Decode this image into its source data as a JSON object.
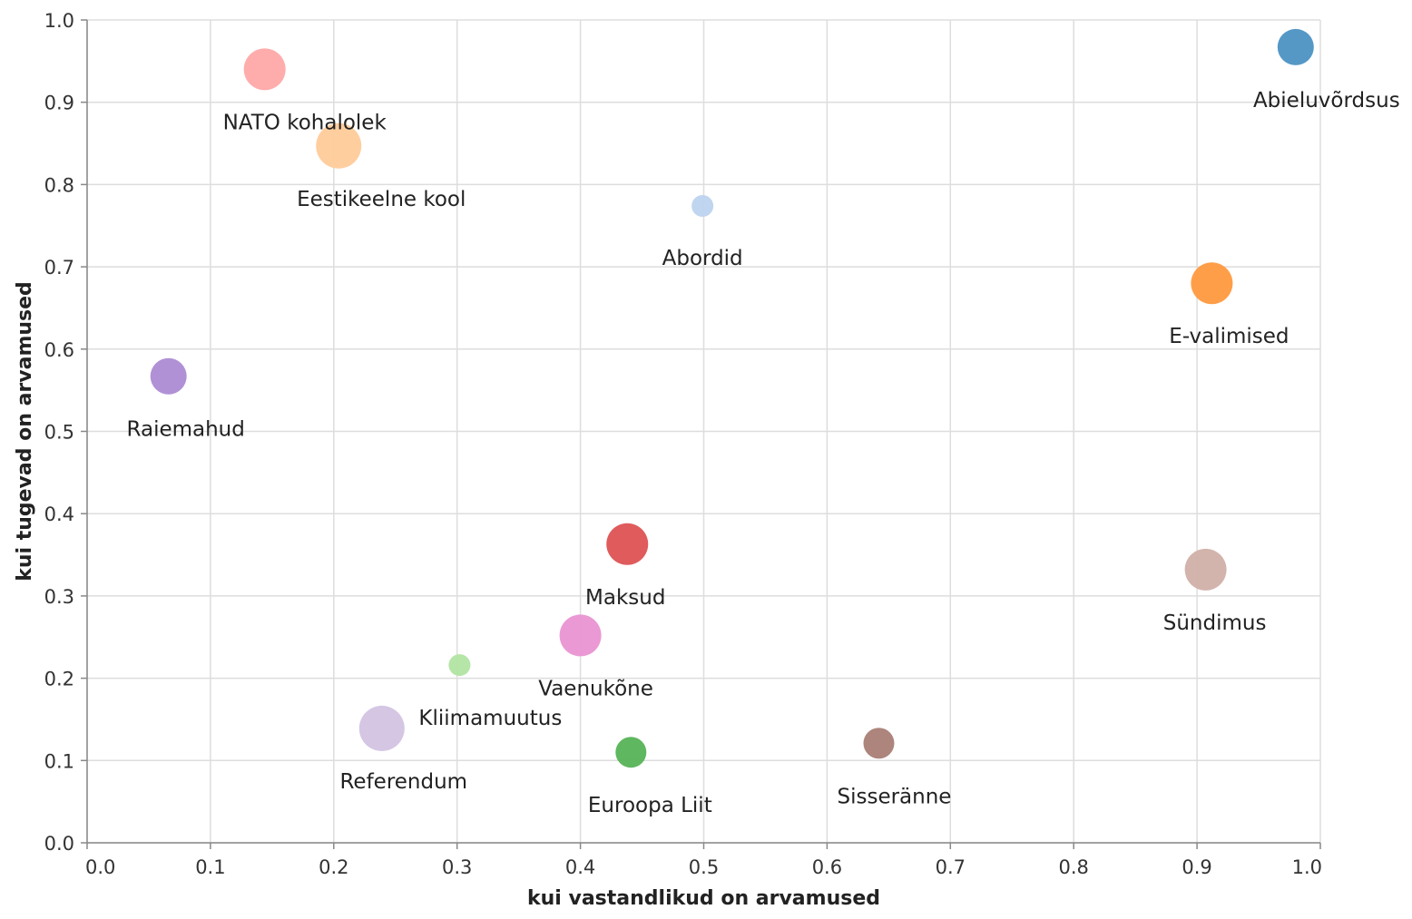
{
  "chart_data": {
    "type": "scatter",
    "xlabel": "kui vastandlikud on arvamused",
    "ylabel": "kui tugevad on arvamused",
    "xlim": [
      0,
      1
    ],
    "ylim": [
      0,
      1
    ],
    "x_ticks": [
      "0.0",
      "0.1",
      "0.2",
      "0.3",
      "0.4",
      "0.5",
      "0.6",
      "0.7",
      "0.8",
      "0.9",
      "1.0"
    ],
    "y_ticks": [
      "0.0",
      "0.1",
      "0.2",
      "0.3",
      "0.4",
      "0.5",
      "0.6",
      "0.7",
      "0.8",
      "0.9",
      "1.0"
    ],
    "grid": true,
    "encoding": "bubble size = third variable (unlabeled); color = category",
    "points": [
      {
        "label": "Abieluvõrdsus",
        "x": 0.98,
        "y": 0.967,
        "size": 3,
        "color": "#4c92c3"
      },
      {
        "label": "NATO kohalolek",
        "x": 0.144,
        "y": 0.94,
        "size": 4,
        "color": "#ffa8a8"
      },
      {
        "label": "Eestikeelne kool",
        "x": 0.204,
        "y": 0.847,
        "size": 5,
        "color": "#ffcb9a"
      },
      {
        "label": "Abordid",
        "x": 0.499,
        "y": 0.774,
        "size": 1,
        "color": "#bdd3ee"
      },
      {
        "label": "E-valimised",
        "x": 0.912,
        "y": 0.68,
        "size": 4,
        "color": "#ff993e"
      },
      {
        "label": "Raiemahud",
        "x": 0.066,
        "y": 0.567,
        "size": 3,
        "color": "#ad8bd3"
      },
      {
        "label": "Maksud",
        "x": 0.438,
        "y": 0.363,
        "size": 4,
        "color": "#de5253"
      },
      {
        "label": "Sündimus",
        "x": 0.907,
        "y": 0.332,
        "size": 4,
        "color": "#d0b0a9"
      },
      {
        "label": "Vaenukõne",
        "x": 0.4,
        "y": 0.252,
        "size": 4,
        "color": "#e994d2"
      },
      {
        "label": "Kliimamuutus",
        "x": 0.302,
        "y": 0.216,
        "size": 1,
        "color": "#b1e4a2"
      },
      {
        "label": "Referendum",
        "x": 0.239,
        "y": 0.139,
        "size": 5,
        "color": "#d3c3e3"
      },
      {
        "label": "Sisseränne",
        "x": 0.642,
        "y": 0.121,
        "size": 2,
        "color": "#a97e75"
      },
      {
        "label": "Euroopa Liit",
        "x": 0.441,
        "y": 0.11,
        "size": 2,
        "color": "#56b356"
      }
    ]
  }
}
